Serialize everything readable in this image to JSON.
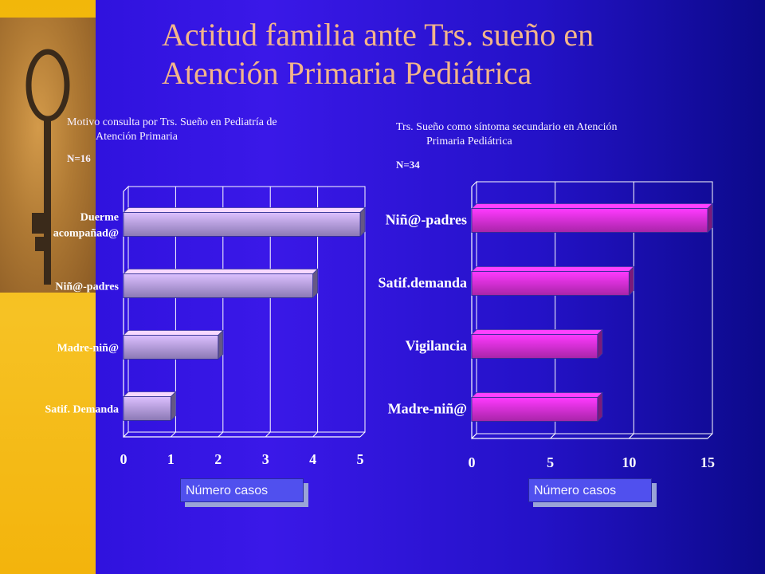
{
  "title_line1": "Actitud familia ante Trs. sueño en",
  "title_line2": "Atención Primaria Pediátrica",
  "chart_data": [
    {
      "type": "bar",
      "orientation": "horizontal",
      "title_line1": "Motivo consulta por Trs. Sueño en Pediatría de",
      "title_line2": "Atención Primaria",
      "n_label": "N=16",
      "categories": [
        "Duerme acompañad@",
        "Niñ@-padres",
        "Madre-niñ@",
        "Satif. Demanda"
      ],
      "category_lines": [
        [
          "Duerme",
          "acompañad@"
        ],
        [
          "Niñ@-padres"
        ],
        [
          "Madre-niñ@"
        ],
        [
          "Satif. Demanda"
        ]
      ],
      "values": [
        5,
        4,
        2,
        1
      ],
      "xlim": [
        0,
        5
      ],
      "ticks": [
        0,
        1,
        2,
        3,
        4,
        5
      ],
      "grid": true,
      "legend": "Número casos",
      "bar_color": "#b8a0f0"
    },
    {
      "type": "bar",
      "orientation": "horizontal",
      "title_line1": "Trs. Sueño como síntoma secundario en Atención",
      "title_line2": "Primaria Pediátrica",
      "n_label": "N=34",
      "categories": [
        "Niñ@-padres",
        "Satif.demanda",
        "Vigilancia",
        "Madre-niñ@"
      ],
      "category_lines": [
        [
          "Niñ@-padres"
        ],
        [
          "Satif.demanda"
        ],
        [
          "Vigilancia"
        ],
        [
          "Madre-niñ@"
        ]
      ],
      "values": [
        15,
        10,
        8,
        8
      ],
      "xlim": [
        0,
        15
      ],
      "ticks": [
        0,
        5,
        10,
        15
      ],
      "grid": true,
      "legend": "Número casos",
      "bar_color": "#e030e0"
    }
  ]
}
